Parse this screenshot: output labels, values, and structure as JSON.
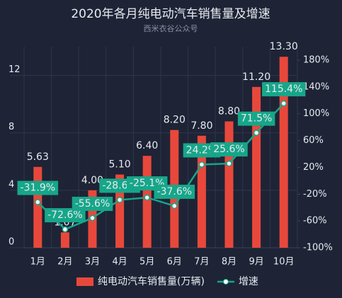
{
  "chart_data": {
    "type": "bar",
    "title": "2020年各月纯电动汽车销售量及增速",
    "subtitle": "西米衣谷公众号",
    "categories": [
      "1月",
      "2月",
      "3月",
      "4月",
      "5月",
      "6月",
      "7月",
      "8月",
      "9月",
      "10月"
    ],
    "series": [
      {
        "name": "纯电动汽车销售量(万辆)",
        "type": "bar",
        "color": "#e8483b",
        "values": [
          5.63,
          1.07,
          4.0,
          5.1,
          6.4,
          8.2,
          7.8,
          8.8,
          11.2,
          13.3
        ],
        "value_labels": [
          "5.63",
          "1.07",
          "4.00",
          "5.10",
          "6.40",
          "8.20",
          "7.80",
          "8.80",
          "11.20",
          "13.30"
        ]
      },
      {
        "name": "增速",
        "type": "line",
        "color": "#17a689",
        "axis": "y2",
        "values": [
          -31.9,
          -72.6,
          -55.6,
          -28.6,
          -25.1,
          -37.6,
          24.2,
          25.6,
          71.5,
          115.4
        ],
        "value_labels": [
          "-31.9%",
          "-72.6%",
          "-55.6%",
          "-28.6%",
          "-25.1%",
          "-37.6%",
          "24.2%",
          "25.6%",
          "71.5%",
          "115.4%"
        ]
      }
    ],
    "ylim": [
      0,
      14
    ],
    "yticks": [
      0,
      4,
      8,
      12
    ],
    "y2lim": [
      -100,
      200
    ],
    "y2ticks": [
      {
        "value": -100,
        "label": "-100%"
      },
      {
        "value": -60,
        "label": "-60%"
      },
      {
        "value": -20,
        "label": "-20%"
      },
      {
        "value": 20,
        "label": "20%"
      },
      {
        "value": 60,
        "label": "60%"
      },
      {
        "value": 100,
        "label": "100%"
      },
      {
        "value": 140,
        "label": "140%"
      },
      {
        "value": 180,
        "label": "180%"
      }
    ],
    "grid": true,
    "legend": "bottom"
  }
}
